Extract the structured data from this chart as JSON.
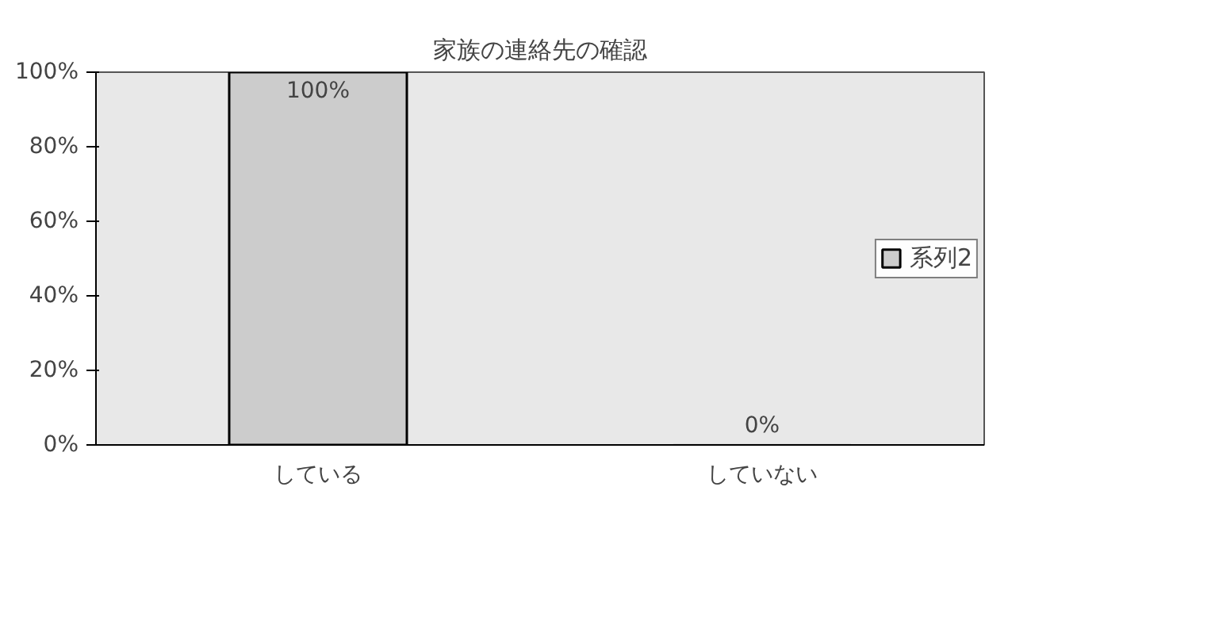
{
  "chart_data": {
    "type": "bar",
    "title": "家族の連絡先の確認",
    "categories": [
      "している",
      "していない"
    ],
    "series": [
      {
        "name": "系列2",
        "color": "#cccccc",
        "values": [
          100,
          0
        ]
      }
    ],
    "value_labels": [
      "100%",
      "0%"
    ],
    "ylim": [
      0,
      100
    ],
    "yticks": [
      {
        "value": 0,
        "label": "0%"
      },
      {
        "value": 20,
        "label": "20%"
      },
      {
        "value": 40,
        "label": "40%"
      },
      {
        "value": 60,
        "label": "60%"
      },
      {
        "value": 80,
        "label": "80%"
      },
      {
        "value": 100,
        "label": "100%"
      }
    ],
    "grid": false,
    "legend": "right"
  }
}
